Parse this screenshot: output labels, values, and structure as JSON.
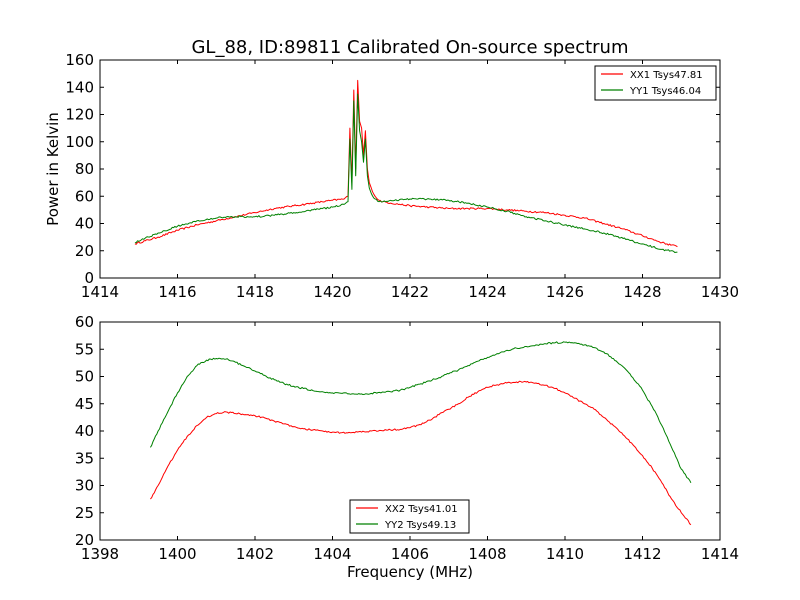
{
  "figure": {
    "title": "GL_88, ID:89811 Calibrated On-source spectrum"
  },
  "colors": {
    "series_1": "#ff0000",
    "series_2": "#008000",
    "axes": "#000000",
    "background": "#ffffff"
  },
  "chart_data": [
    {
      "type": "line",
      "title": "GL_88, ID:89811 Calibrated On-source spectrum",
      "xlabel": "",
      "ylabel": "Power in Kelvin",
      "xlim": [
        1414,
        1430
      ],
      "ylim": [
        0,
        160
      ],
      "xticks": [
        1414,
        1416,
        1418,
        1420,
        1422,
        1424,
        1426,
        1428,
        1430
      ],
      "yticks": [
        0,
        20,
        40,
        60,
        80,
        100,
        120,
        140,
        160
      ],
      "grid": false,
      "legend_position": "top-right",
      "series": [
        {
          "name": "XX1 Tsys47.81",
          "color": "#ff0000",
          "x": [
            1414.9,
            1415.5,
            1416.0,
            1416.5,
            1417.0,
            1417.5,
            1418.0,
            1418.5,
            1419.0,
            1419.5,
            1420.0,
            1420.3,
            1420.4,
            1420.45,
            1420.5,
            1420.55,
            1420.6,
            1420.65,
            1420.7,
            1420.75,
            1420.8,
            1420.85,
            1420.9,
            1420.95,
            1421.0,
            1421.1,
            1421.2,
            1421.3,
            1421.5,
            1422.0,
            1422.5,
            1423.0,
            1423.5,
            1424.0,
            1424.5,
            1425.0,
            1425.5,
            1426.0,
            1426.5,
            1427.0,
            1427.5,
            1428.0,
            1428.5,
            1428.9
          ],
          "y": [
            25,
            30,
            35,
            39,
            42,
            45,
            48,
            51,
            53,
            55,
            57,
            58,
            60,
            110,
            70,
            138,
            80,
            145,
            115,
            110,
            90,
            108,
            80,
            70,
            66,
            60,
            57,
            56,
            55,
            53,
            52,
            51,
            51,
            51,
            50,
            49,
            48,
            46,
            44,
            40,
            36,
            31,
            26,
            23
          ]
        },
        {
          "name": "YY1 Tsys46.04",
          "color": "#008000",
          "x": [
            1414.9,
            1415.5,
            1416.0,
            1416.5,
            1417.0,
            1417.5,
            1418.0,
            1418.5,
            1419.0,
            1419.5,
            1420.0,
            1420.3,
            1420.4,
            1420.45,
            1420.5,
            1420.55,
            1420.6,
            1420.65,
            1420.7,
            1420.75,
            1420.8,
            1420.85,
            1420.9,
            1420.95,
            1421.0,
            1421.1,
            1421.2,
            1421.3,
            1421.5,
            1422.0,
            1422.5,
            1423.0,
            1423.5,
            1424.0,
            1424.5,
            1425.0,
            1425.5,
            1426.0,
            1426.5,
            1427.0,
            1427.5,
            1428.0,
            1428.5,
            1428.9
          ],
          "y": [
            26,
            33,
            38,
            42,
            44,
            45,
            45,
            46,
            48,
            50,
            52,
            54,
            56,
            102,
            65,
            130,
            75,
            135,
            108,
            100,
            85,
            102,
            75,
            66,
            62,
            58,
            56,
            56,
            57,
            58,
            58,
            57,
            55,
            52,
            49,
            45,
            42,
            39,
            36,
            33,
            29,
            25,
            21,
            19
          ]
        }
      ]
    },
    {
      "type": "line",
      "title": "",
      "xlabel": "Frequency (MHz)",
      "ylabel": "",
      "xlim": [
        1398,
        1414
      ],
      "ylim": [
        20,
        60
      ],
      "xticks": [
        1398,
        1400,
        1402,
        1404,
        1406,
        1408,
        1410,
        1412,
        1414
      ],
      "yticks": [
        20,
        25,
        30,
        35,
        40,
        45,
        50,
        55,
        60
      ],
      "grid": false,
      "legend_position": "bottom-center",
      "series": [
        {
          "name": "XX2 Tsys41.01",
          "color": "#ff0000",
          "x": [
            1399.3,
            1399.5,
            1399.75,
            1400.0,
            1400.25,
            1400.5,
            1400.75,
            1401.0,
            1401.25,
            1401.5,
            1401.75,
            1402.0,
            1402.25,
            1402.5,
            1402.75,
            1403.0,
            1403.25,
            1403.5,
            1403.75,
            1404.0,
            1404.25,
            1404.5,
            1404.75,
            1405.0,
            1405.25,
            1405.5,
            1405.75,
            1406.0,
            1406.25,
            1406.5,
            1406.75,
            1407.0,
            1407.25,
            1407.5,
            1407.75,
            1408.0,
            1408.25,
            1408.5,
            1408.75,
            1409.0,
            1409.25,
            1409.5,
            1409.75,
            1410.0,
            1410.25,
            1410.5,
            1410.75,
            1411.0,
            1411.25,
            1411.5,
            1411.75,
            1412.0,
            1412.25,
            1412.5,
            1412.75,
            1413.0,
            1413.25
          ],
          "y": [
            27.5,
            30,
            33.5,
            36.5,
            39,
            41,
            42.5,
            43.2,
            43.5,
            43.2,
            43,
            42.8,
            42.4,
            41.8,
            41.3,
            40.8,
            40.4,
            40.2,
            40,
            39.8,
            39.7,
            39.7,
            39.8,
            40,
            40.1,
            40.2,
            40.3,
            40.6,
            41.2,
            42,
            43,
            44,
            45,
            46.2,
            47.2,
            48,
            48.5,
            48.8,
            49,
            49,
            48.8,
            48.4,
            47.8,
            47,
            46,
            45,
            44,
            42.5,
            41,
            39.3,
            37.5,
            35.5,
            33.2,
            30.5,
            27.5,
            25,
            22.8
          ]
        },
        {
          "name": "YY2 Tsys49.13",
          "color": "#008000",
          "x": [
            1399.3,
            1399.5,
            1399.75,
            1400.0,
            1400.25,
            1400.5,
            1400.75,
            1401.0,
            1401.25,
            1401.5,
            1401.75,
            1402.0,
            1402.25,
            1402.5,
            1402.75,
            1403.0,
            1403.25,
            1403.5,
            1403.75,
            1404.0,
            1404.25,
            1404.5,
            1404.75,
            1405.0,
            1405.25,
            1405.5,
            1405.75,
            1406.0,
            1406.25,
            1406.5,
            1406.75,
            1407.0,
            1407.25,
            1407.5,
            1407.75,
            1408.0,
            1408.25,
            1408.5,
            1408.75,
            1409.0,
            1409.25,
            1409.5,
            1409.75,
            1410.0,
            1410.25,
            1410.5,
            1410.75,
            1411.0,
            1411.25,
            1411.5,
            1411.75,
            1412.0,
            1412.25,
            1412.5,
            1412.75,
            1413.0,
            1413.25
          ],
          "y": [
            37,
            40,
            43.5,
            47,
            50,
            52,
            53,
            53.3,
            53.2,
            52.6,
            51.8,
            51,
            50.2,
            49.4,
            48.7,
            48.2,
            47.8,
            47.4,
            47.2,
            47,
            46.9,
            46.8,
            46.8,
            46.9,
            47,
            47.2,
            47.5,
            48,
            48.6,
            49.2,
            49.8,
            50.5,
            51.2,
            52,
            52.8,
            53.5,
            54.2,
            54.8,
            55.2,
            55.5,
            55.8,
            56,
            56.2,
            56.3,
            56.2,
            55.8,
            55.3,
            54.5,
            53.3,
            51.8,
            49.8,
            47.5,
            44.5,
            41,
            37,
            33,
            30.5
          ]
        }
      ]
    }
  ]
}
